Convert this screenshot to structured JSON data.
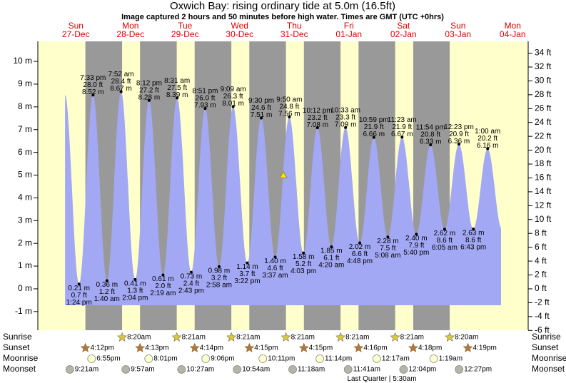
{
  "chart_data": {
    "type": "tide",
    "title": "Oxwich Bay: rising  ordinary tide at 5.0m (16.5ft)",
    "subtitle": "Image captured 2 hours and 50 minutes before high water. Times are GMT (UTC +0hrs)",
    "current_height": 5.0,
    "ylim": [
      -1.82,
      10.88
    ],
    "yticks": [
      {
        "value": -1,
        "label": "-1 m"
      },
      {
        "value": 0,
        "label": "0 m"
      },
      {
        "value": 1,
        "label": "1 m"
      },
      {
        "value": 2,
        "label": "2 m"
      },
      {
        "value": 3,
        "label": "3 m"
      },
      {
        "value": 4,
        "label": "4 m"
      },
      {
        "value": 5,
        "label": "5 m"
      },
      {
        "value": 6,
        "label": "6 m"
      },
      {
        "value": 7,
        "label": "7 m"
      },
      {
        "value": 8,
        "label": "8 m"
      },
      {
        "value": 9,
        "label": "9 m"
      },
      {
        "value": 10,
        "label": "10 m"
      }
    ],
    "y2lim": [
      -5.97,
      35.7
    ],
    "y2ticks": [
      {
        "value": -6,
        "label": "-6 ft"
      },
      {
        "value": -4,
        "label": "-4 ft"
      },
      {
        "value": -2,
        "label": "-2 ft"
      },
      {
        "value": 0,
        "label": "0 ft"
      },
      {
        "value": 2,
        "label": "2 ft"
      },
      {
        "value": 4,
        "label": "4 ft"
      },
      {
        "value": 6,
        "label": "6 ft"
      },
      {
        "value": 8,
        "label": "8 ft"
      },
      {
        "value": 10,
        "label": "10 ft"
      },
      {
        "value": 12,
        "label": "12 ft"
      },
      {
        "value": 14,
        "label": "14 ft"
      },
      {
        "value": 16,
        "label": "16 ft"
      },
      {
        "value": 18,
        "label": "18 ft"
      },
      {
        "value": 20,
        "label": "20 ft"
      },
      {
        "value": 22,
        "label": "22 ft"
      },
      {
        "value": 24,
        "label": "24 ft"
      },
      {
        "value": 26,
        "label": "26 ft"
      },
      {
        "value": 28,
        "label": "28 ft"
      },
      {
        "value": 30,
        "label": "30 ft"
      },
      {
        "value": 32,
        "label": "32 ft"
      },
      {
        "value": 34,
        "label": "34 ft"
      }
    ],
    "colors": {
      "tide": "#a2a8f4",
      "night": "#999999",
      "day": "#ffffcc",
      "header": "#dd0000",
      "sunrise": "#d8c848",
      "sunset": "#b8753a",
      "moonrise": "#ffffcc",
      "moonset": "#b4b4a8",
      "marker": "#f0e020"
    },
    "rows": [
      "Sunrise",
      "Sunset",
      "Moonrise",
      "Moonset"
    ],
    "moon_phase": {
      "name": "Last Quarter",
      "time": "5:30am"
    },
    "days": [
      {
        "weekday": "Sun",
        "date": "27-Dec",
        "sunset": "4:12pm",
        "moonrise": "6:55pm",
        "moonset": "9:21am",
        "tides": {
          "times": [
            "1:24 pm",
            "7:33 pm"
          ],
          "values": [
            0.21,
            8.52
          ],
          "value_labels": [
            "0.21 m",
            "8.52 m"
          ],
          "ft_labels": [
            "0.7 ft",
            "28.0 ft"
          ]
        }
      },
      {
        "weekday": "Mon",
        "date": "28-Dec",
        "sunrise": "8:20am",
        "sunset": "4:13pm",
        "moonrise": "8:01pm",
        "moonset": "9:57am",
        "tides": {
          "times": [
            "1:40 am",
            "7:52 am",
            "2:04 pm",
            "8:12 pm"
          ],
          "values": [
            0.36,
            8.67,
            0.41,
            8.28
          ],
          "value_labels": [
            "0.36 m",
            "8.67 m",
            "0.41 m",
            "8.28 m"
          ],
          "ft_labels": [
            "1.2 ft",
            "28.4 ft",
            "1.3 ft",
            "27.2 ft"
          ]
        }
      },
      {
        "weekday": "Tue",
        "date": "29-Dec",
        "sunrise": "8:21am",
        "sunset": "4:14pm",
        "moonrise": "9:06pm",
        "moonset": "10:27am",
        "tides": {
          "times": [
            "2:19 am",
            "8:31 am",
            "2:43 pm",
            "8:51 pm"
          ],
          "values": [
            0.61,
            8.39,
            0.73,
            7.93
          ],
          "value_labels": [
            "0.61 m",
            "8.39 m",
            "0.73 m",
            "7.93 m"
          ],
          "ft_labels": [
            "2.0 ft",
            "27.5 ft",
            "2.4 ft",
            "26.0 ft"
          ]
        }
      },
      {
        "weekday": "Wed",
        "date": "30-Dec",
        "sunrise": "8:21am",
        "sunset": "4:15pm",
        "moonrise": "10:11pm",
        "moonset": "10:54am",
        "tides": {
          "times": [
            "2:58 am",
            "9:09 am",
            "3:22 pm",
            "9:30 pm"
          ],
          "values": [
            0.98,
            8.01,
            1.14,
            7.51
          ],
          "value_labels": [
            "0.98 m",
            "8.01 m",
            "1.14 m",
            "7.51 m"
          ],
          "ft_labels": [
            "3.2 ft",
            "26.3 ft",
            "3.7 ft",
            "24.6 ft"
          ]
        }
      },
      {
        "weekday": "Thu",
        "date": "31-Dec",
        "sunrise": "8:21am",
        "sunset": "4:15pm",
        "moonrise": "11:14pm",
        "moonset": "11:18am",
        "tides": {
          "times": [
            "3:37 am",
            "9:50 am",
            "4:03 pm",
            "10:12 pm"
          ],
          "values": [
            1.4,
            7.56,
            1.58,
            7.08
          ],
          "value_labels": [
            "1.40 m",
            "7.56 m",
            "1.58 m",
            "7.08 m"
          ],
          "ft_labels": [
            "4.6 ft",
            "24.8 ft",
            "5.2 ft",
            "23.2 ft"
          ]
        }
      },
      {
        "weekday": "Fri",
        "date": "01-Jan",
        "sunrise": "8:21am",
        "sunset": "4:16pm",
        "moonset": "11:41am",
        "tides": {
          "times": [
            "4:20 am",
            "10:33 am",
            "4:48 pm",
            "10:59 pm"
          ],
          "values": [
            1.85,
            7.09,
            2.02,
            6.66
          ],
          "value_labels": [
            "1.85 m",
            "7.09 m",
            "2.02 m",
            "6.66 m"
          ],
          "ft_labels": [
            "6.1 ft",
            "23.3 ft",
            "6.6 ft",
            "21.9 ft"
          ]
        }
      },
      {
        "weekday": "Sat",
        "date": "02-Jan",
        "sunrise": "8:21am",
        "sunset": "4:18pm",
        "moonrise": "12:17am",
        "moonset": "12:04pm",
        "tides": {
          "times": [
            "5:08 am",
            "11:23 am",
            "5:40 pm",
            "11:54 pm"
          ],
          "values": [
            2.28,
            6.67,
            2.4,
            6.33
          ],
          "value_labels": [
            "2.28 m",
            "6.67 m",
            "2.40 m",
            "6.33 m"
          ],
          "ft_labels": [
            "7.5 ft",
            "21.9 ft",
            "7.9 ft",
            "20.8 ft"
          ]
        }
      },
      {
        "weekday": "Sun",
        "date": "03-Jan",
        "sunrise": "8:20am",
        "sunset": "4:19pm",
        "moonrise": "1:19am",
        "moonset": "12:27pm",
        "tides": {
          "times": [
            "6:05 am",
            "12:23 pm",
            "6:43 pm"
          ],
          "values": [
            2.62,
            6.36,
            2.63
          ],
          "value_labels": [
            "2.62 m",
            "6.36 m",
            "2.63 m"
          ],
          "ft_labels": [
            "8.6 ft",
            "20.9 ft",
            "8.6 ft"
          ]
        }
      },
      {
        "weekday": "Mon",
        "date": "04-Jan",
        "tides": {
          "times": [
            "1:00 am"
          ],
          "values": [
            6.16
          ],
          "value_labels": [
            "6.16 m"
          ],
          "ft_labels": [
            "20.2 ft"
          ]
        }
      }
    ]
  }
}
